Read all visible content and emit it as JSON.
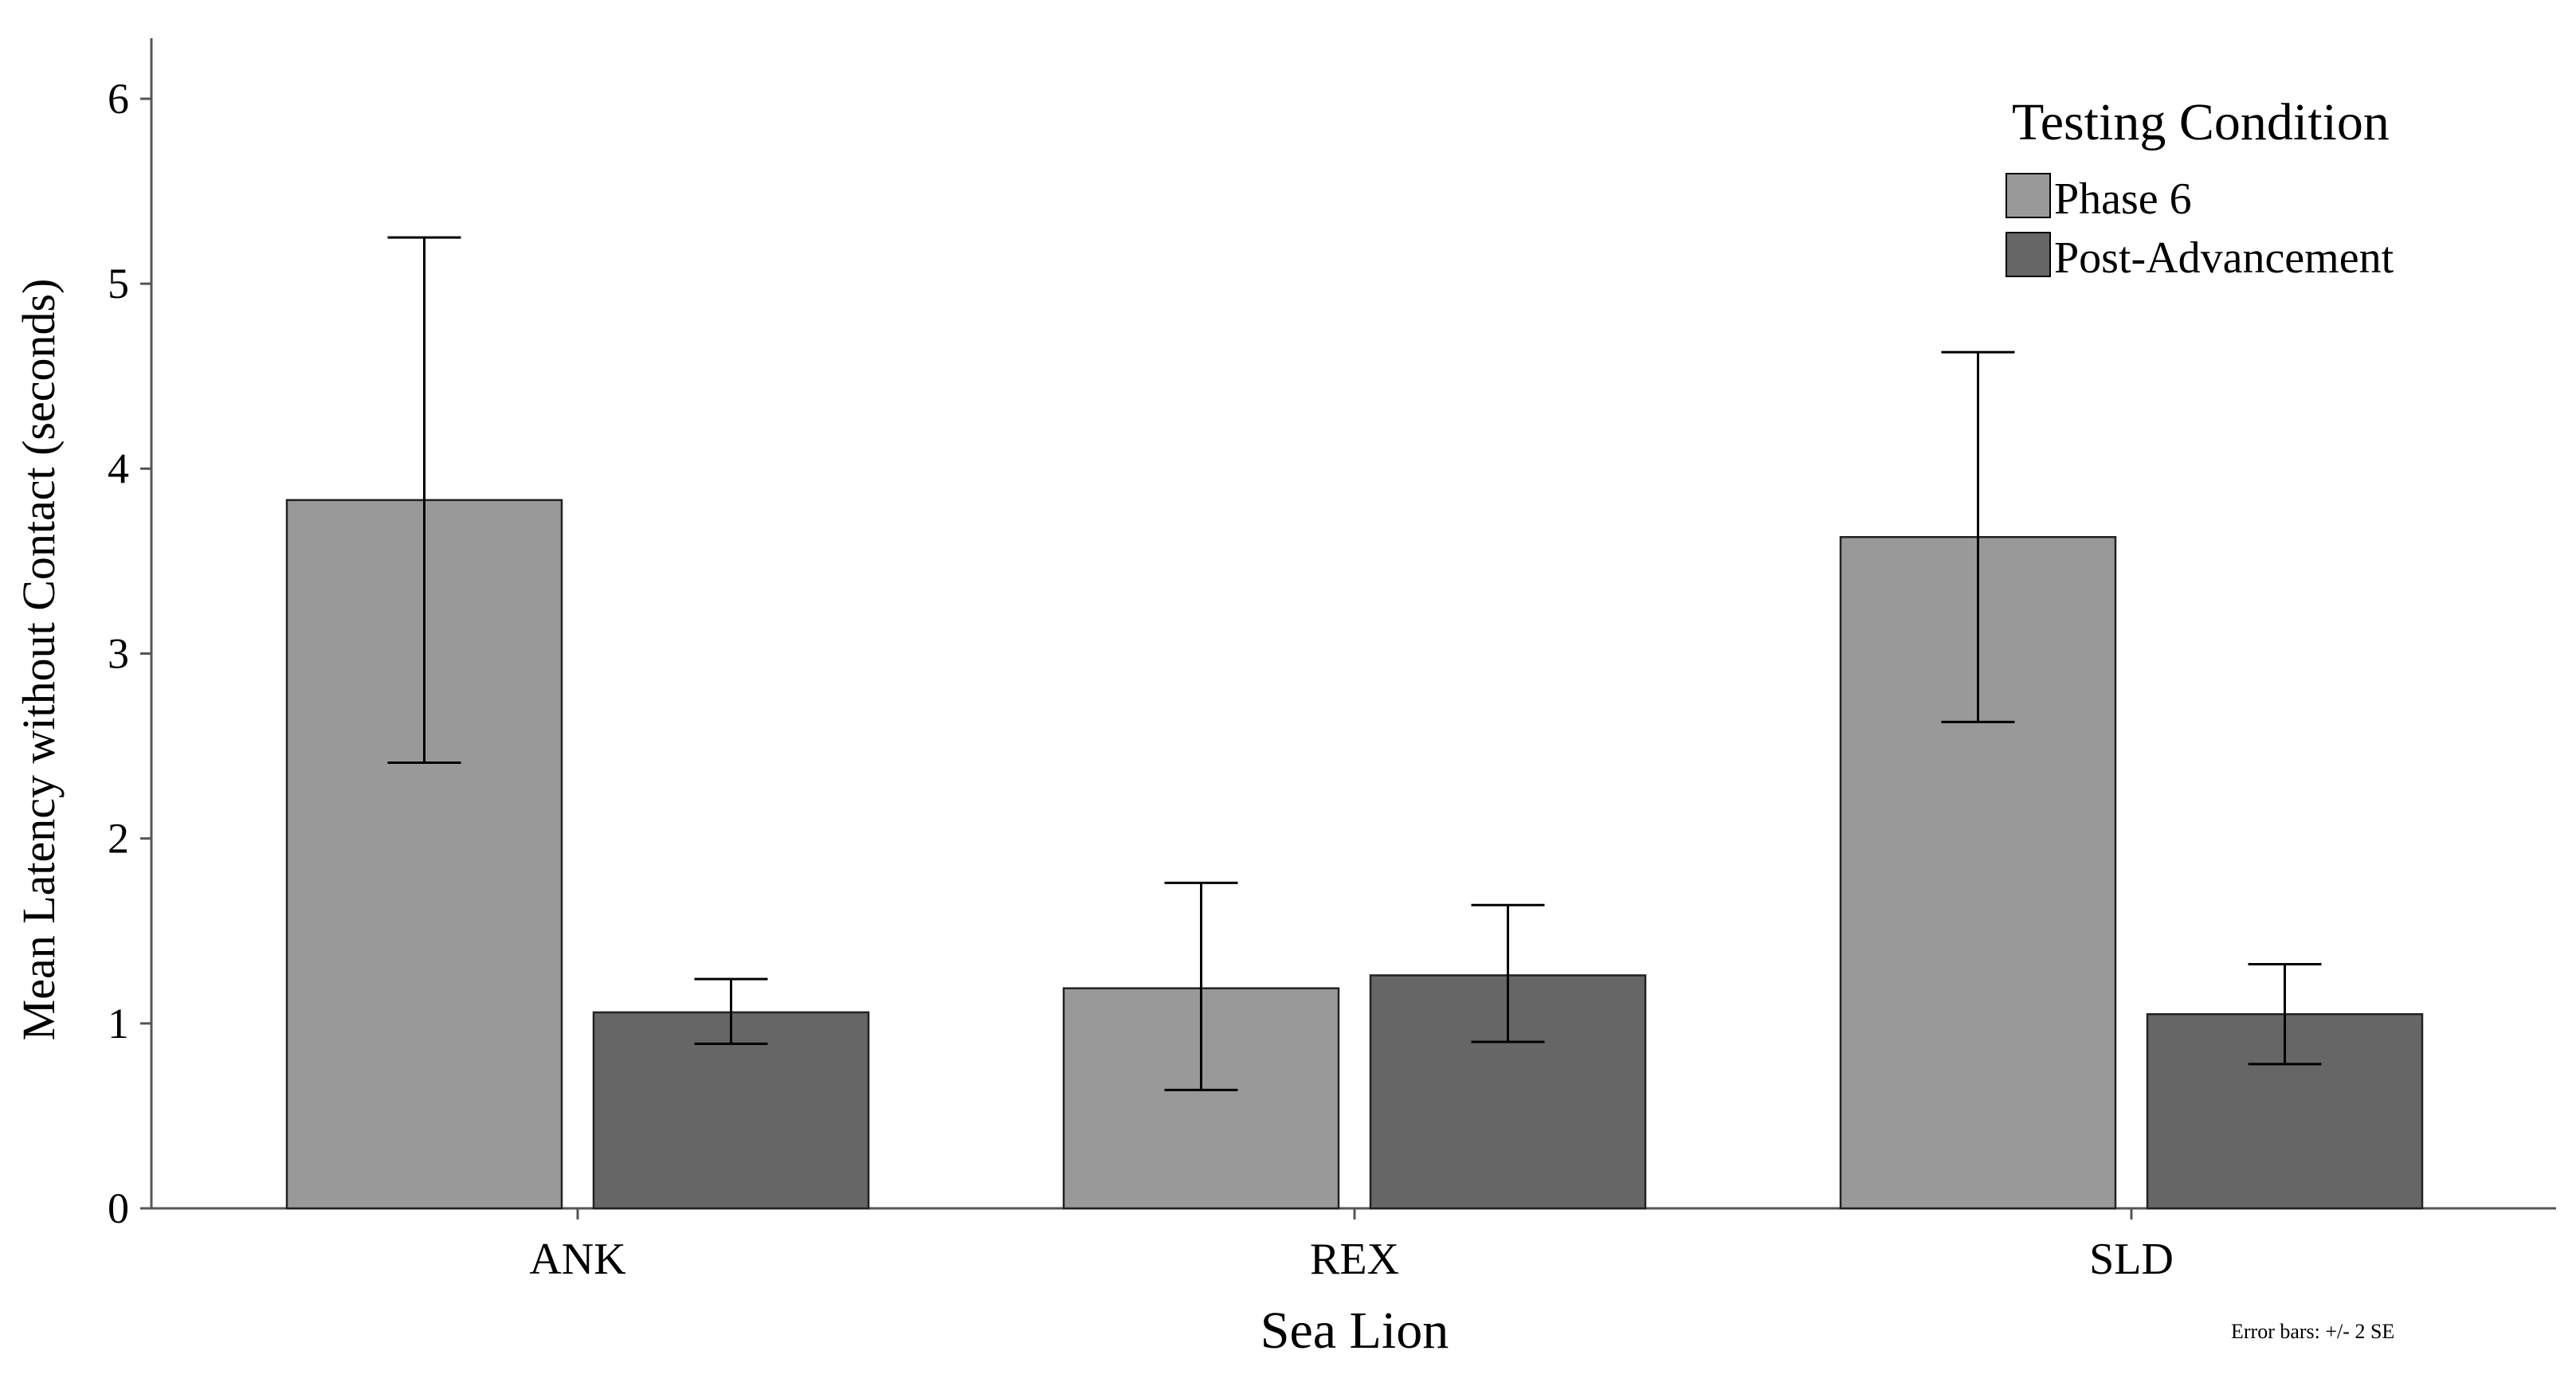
{
  "chart_data": {
    "type": "bar",
    "xlabel": "Sea Lion",
    "ylabel": "Mean Latency without Contact (seconds)",
    "categories": [
      "ANK",
      "REX",
      "SLD"
    ],
    "ylim": [
      0,
      6
    ],
    "yticks": [
      "0",
      "1",
      "2",
      "3",
      "4",
      "5",
      "6"
    ],
    "grid": false,
    "legend": {
      "title": "Testing Condition",
      "placement": "top-right"
    },
    "series": [
      {
        "name": "Phase 6",
        "color": "#999999",
        "values": [
          3.83,
          1.19,
          3.63
        ],
        "error_low": [
          2.41,
          0.64,
          2.63
        ],
        "error_high": [
          5.25,
          1.76,
          4.63
        ]
      },
      {
        "name": "Post-Advancement",
        "color": "#666666",
        "values": [
          1.06,
          1.26,
          1.05
        ],
        "error_low": [
          0.89,
          0.9,
          0.78
        ],
        "error_high": [
          1.24,
          1.64,
          1.32
        ]
      }
    ],
    "footnote": "Error bars: +/- 2 SE"
  }
}
